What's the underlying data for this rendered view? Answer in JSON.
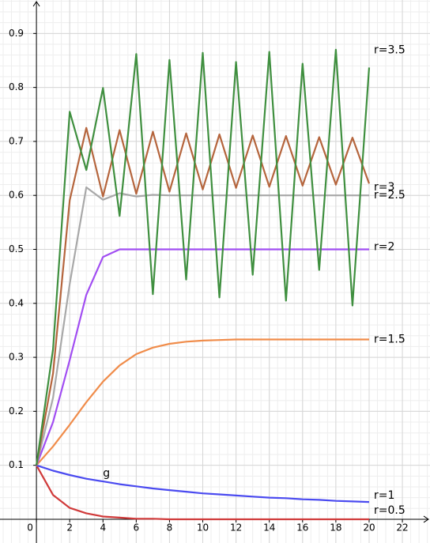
{
  "chart_data": {
    "type": "line",
    "x": [
      0,
      1,
      2,
      3,
      4,
      5,
      6,
      7,
      8,
      9,
      10,
      11,
      12,
      13,
      14,
      15,
      16,
      17,
      18,
      19,
      20
    ],
    "series": [
      {
        "name": "r=0.5",
        "color": "#d03a3a",
        "values": [
          0.1,
          0.045,
          0.021,
          0.011,
          0.005,
          0.003,
          0.001,
          0.001,
          0,
          0,
          0,
          0,
          0,
          0,
          0,
          0,
          0,
          0,
          0,
          0,
          0
        ]
      },
      {
        "name": "r=1",
        "color": "#4a4af0",
        "values": [
          0.1,
          0.09,
          0.082,
          0.075,
          0.07,
          0.065,
          0.061,
          0.057,
          0.054,
          0.051,
          0.048,
          0.046,
          0.044,
          0.042,
          0.04,
          0.039,
          0.037,
          0.036,
          0.034,
          0.033,
          0.032
        ]
      },
      {
        "name": "r=1.5",
        "color": "#f08c4a",
        "values": [
          0.1,
          0.135,
          0.175,
          0.217,
          0.255,
          0.285,
          0.306,
          0.318,
          0.325,
          0.329,
          0.331,
          0.332,
          0.333,
          0.333,
          0.333,
          0.333,
          0.333,
          0.333,
          0.333,
          0.333,
          0.333
        ]
      },
      {
        "name": "r=2",
        "color": "#a14df2",
        "values": [
          0.1,
          0.18,
          0.295,
          0.416,
          0.486,
          0.5,
          0.5,
          0.5,
          0.5,
          0.5,
          0.5,
          0.5,
          0.5,
          0.5,
          0.5,
          0.5,
          0.5,
          0.5,
          0.5,
          0.5,
          0.5
        ]
      },
      {
        "name": "r=2.5",
        "color": "#a8a8a8",
        "values": [
          0.1,
          0.225,
          0.436,
          0.615,
          0.592,
          0.604,
          0.598,
          0.601,
          0.6,
          0.6,
          0.6,
          0.6,
          0.6,
          0.6,
          0.6,
          0.6,
          0.6,
          0.6,
          0.6,
          0.6,
          0.6
        ]
      },
      {
        "name": "r=3",
        "color": "#b5653d",
        "values": [
          0.1,
          0.27,
          0.591,
          0.725,
          0.598,
          0.721,
          0.603,
          0.718,
          0.607,
          0.715,
          0.611,
          0.713,
          0.614,
          0.711,
          0.616,
          0.71,
          0.618,
          0.708,
          0.62,
          0.707,
          0.622
        ]
      },
      {
        "name": "r=3.5",
        "color": "#3f8f3f",
        "values": [
          0.1,
          0.315,
          0.755,
          0.647,
          0.799,
          0.562,
          0.862,
          0.417,
          0.851,
          0.444,
          0.864,
          0.411,
          0.847,
          0.453,
          0.866,
          0.405,
          0.844,
          0.462,
          0.87,
          0.396,
          0.837
        ]
      }
    ],
    "annotations": [
      {
        "text": "g",
        "color": "#d03a3a"
      }
    ],
    "xlim": [
      -2.19,
      23.66
    ],
    "ylim": [
      -0.044,
      0.962
    ],
    "xticks": [
      0,
      2,
      4,
      6,
      8,
      10,
      12,
      14,
      16,
      18,
      20,
      22
    ],
    "yticks": [
      0.1,
      0.2,
      0.3,
      0.4,
      0.5,
      0.6,
      0.7,
      0.8,
      0.9
    ],
    "grid": true
  }
}
